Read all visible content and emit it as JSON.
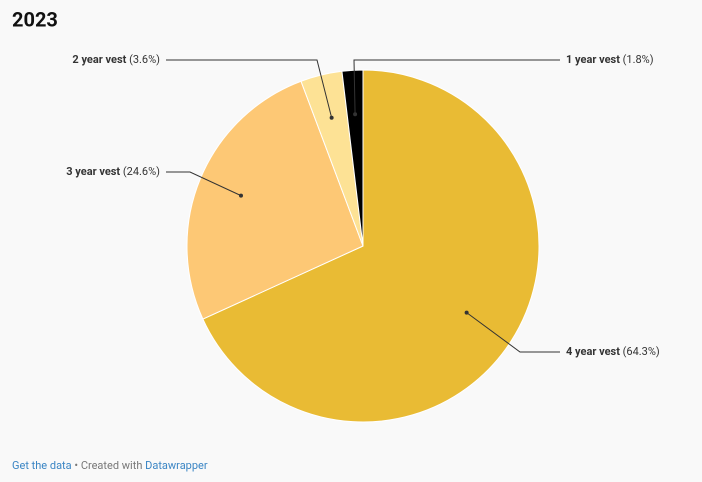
{
  "chart_data": {
    "type": "pie",
    "title": "2023",
    "categories": [
      "4 year vest",
      "3 year vest",
      "2 year vest",
      "1 year vest"
    ],
    "values": [
      64.3,
      24.6,
      3.6,
      1.8
    ],
    "value_labels": [
      "(64.3%)",
      "(24.6%)",
      "(3.6%)",
      "(1.8%)"
    ],
    "colors": [
      "#e9bb34",
      "#fdc875",
      "#fde295",
      "#000000"
    ]
  },
  "footer": {
    "get_data": "Get the data",
    "created_with": "• Created with",
    "datawrapper": "Datawrapper"
  }
}
